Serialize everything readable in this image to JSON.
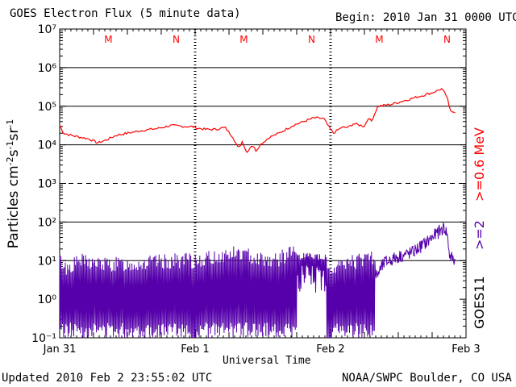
{
  "header": {
    "title": "GOES Electron Flux (5 minute data)",
    "begin": "Begin: 2010 Jan 31 0000 UTC"
  },
  "footer": {
    "updated": "Updated 2010 Feb  2 23:55:02 UTC",
    "credit": "NOAA/SWPC Boulder, CO USA"
  },
  "colors": {
    "high_energy": "#ff0000",
    "low_energy": "#5500aa",
    "axis": "#000000"
  },
  "chart_data": {
    "type": "line",
    "title": "GOES Electron Flux (5 minute data)",
    "xlabel": "Universal Time",
    "ylabel": "Particles cm^-2 s^-1 sr^-1",
    "yscale": "log",
    "ylim_exponents": [
      -1,
      7
    ],
    "xlim_days": [
      0,
      3
    ],
    "x_ticks": [
      {
        "day": 0,
        "label": "Jan 31"
      },
      {
        "day": 1,
        "label": "Feb 1"
      },
      {
        "day": 2,
        "label": "Feb 2"
      },
      {
        "day": 3,
        "label": "Feb 3"
      }
    ],
    "y_ticks": [
      {
        "exp": -1,
        "label": "10⁻¹"
      },
      {
        "exp": 0,
        "label": "10⁰"
      },
      {
        "exp": 1,
        "label": "10¹"
      },
      {
        "exp": 2,
        "label": "10²"
      },
      {
        "exp": 3,
        "label": "10³"
      },
      {
        "exp": 4,
        "label": "10⁴"
      },
      {
        "exp": 5,
        "label": "10⁵"
      },
      {
        "exp": 6,
        "label": "10⁶"
      },
      {
        "exp": 7,
        "label": "10⁷"
      }
    ],
    "grid_lines_exp": [
      1,
      2,
      3,
      4,
      5,
      6
    ],
    "dashed_grid_exp": [
      3
    ],
    "markers": [
      {
        "day": 0.36,
        "label": "M"
      },
      {
        "day": 0.86,
        "label": "N"
      },
      {
        "day": 1.36,
        "label": "M"
      },
      {
        "day": 1.86,
        "label": "N"
      },
      {
        "day": 2.36,
        "label": "M"
      },
      {
        "day": 2.86,
        "label": "N"
      }
    ],
    "right_labels": [
      {
        "text": ">=0.6 MeV",
        "color": "#ff0000"
      },
      {
        "text": ">=2",
        "color": "#5500aa"
      },
      {
        "text": "GOES11",
        "color": "#000000"
      }
    ],
    "series": [
      {
        "name": ">=0.6 MeV",
        "color": "#ff0000",
        "points": [
          [
            0,
            4.5
          ],
          [
            0.03,
            4.3
          ],
          [
            0.08,
            4.25
          ],
          [
            0.15,
            4.2
          ],
          [
            0.22,
            4.15
          ],
          [
            0.28,
            4.05
          ],
          [
            0.34,
            4.12
          ],
          [
            0.42,
            4.25
          ],
          [
            0.5,
            4.3
          ],
          [
            0.62,
            4.38
          ],
          [
            0.72,
            4.42
          ],
          [
            0.82,
            4.5
          ],
          [
            0.9,
            4.48
          ],
          [
            0.98,
            4.47
          ],
          [
            1.02,
            4.43
          ],
          [
            1.08,
            4.4
          ],
          [
            1.15,
            4.4
          ],
          [
            1.22,
            4.45
          ],
          [
            1.28,
            4.2
          ],
          [
            1.32,
            3.9
          ],
          [
            1.35,
            4.1
          ],
          [
            1.38,
            3.8
          ],
          [
            1.42,
            4.0
          ],
          [
            1.45,
            3.85
          ],
          [
            1.48,
            4.0
          ],
          [
            1.55,
            4.2
          ],
          [
            1.62,
            4.3
          ],
          [
            1.72,
            4.5
          ],
          [
            1.8,
            4.6
          ],
          [
            1.88,
            4.7
          ],
          [
            1.95,
            4.68
          ],
          [
            1.98,
            4.5
          ],
          [
            2.02,
            4.3
          ],
          [
            2.08,
            4.45
          ],
          [
            2.13,
            4.45
          ],
          [
            2.17,
            4.55
          ],
          [
            2.25,
            4.48
          ],
          [
            2.28,
            4.7
          ],
          [
            2.3,
            4.6
          ],
          [
            2.35,
            5.0
          ],
          [
            2.45,
            5.05
          ],
          [
            2.55,
            5.15
          ],
          [
            2.65,
            5.25
          ],
          [
            2.75,
            5.35
          ],
          [
            2.82,
            5.45
          ],
          [
            2.86,
            5.25
          ],
          [
            2.88,
            4.9
          ],
          [
            2.92,
            4.85
          ]
        ]
      },
      {
        "name": ">=2 MeV",
        "color": "#5500aa",
        "points": [
          [
            0,
            0.5
          ],
          [
            0.05,
            0.3
          ],
          [
            0.15,
            0.5
          ],
          [
            0.3,
            0.4
          ],
          [
            0.5,
            0.4
          ],
          [
            0.7,
            0.45
          ],
          [
            0.9,
            0.5
          ],
          [
            1.1,
            0.55
          ],
          [
            1.3,
            0.7
          ],
          [
            1.5,
            0.55
          ],
          [
            1.6,
            0.5
          ],
          [
            1.7,
            0.7
          ],
          [
            1.75,
            0.8
          ],
          [
            1.8,
            0.95
          ],
          [
            1.9,
            1.05
          ],
          [
            1.95,
            1.0
          ],
          [
            2.0,
            0.2
          ],
          [
            2.1,
            0.4
          ],
          [
            2.2,
            0.5
          ],
          [
            2.3,
            0.6
          ],
          [
            2.33,
            0.55
          ],
          [
            2.4,
            0.95
          ],
          [
            2.5,
            1.1
          ],
          [
            2.6,
            1.2
          ],
          [
            2.7,
            1.45
          ],
          [
            2.8,
            1.75
          ],
          [
            2.84,
            1.85
          ],
          [
            2.86,
            1.7
          ],
          [
            2.88,
            1.1
          ],
          [
            2.92,
            1.0
          ]
        ]
      }
    ]
  }
}
